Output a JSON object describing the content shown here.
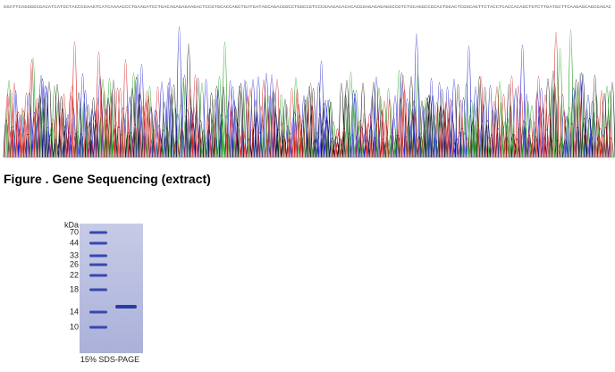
{
  "sequence": "GGATTCAGGGGCGACATCATGCTACCCGAAGTCATCAAAACCCTGAAGATCCTGACAGAGAGAAGACTCCGTGCACCAGCTGATGATAGCAGACGGCCTGGCCGTCCCGAAGACACACACGGAGAGAGAGGCCGTCTGCAGGCCGCACTGGACTCGGCAGTTCTACCTCACCACAGCTGTCTTGATGCTTCAAGAGCAGCGAGAC",
  "caption": "Figure . Gene Sequencing (extract)",
  "gel": {
    "unit": "kDa",
    "markers": [
      70,
      44,
      33,
      26,
      22,
      18,
      14,
      10
    ],
    "label": "15% SDS-PAGE"
  }
}
